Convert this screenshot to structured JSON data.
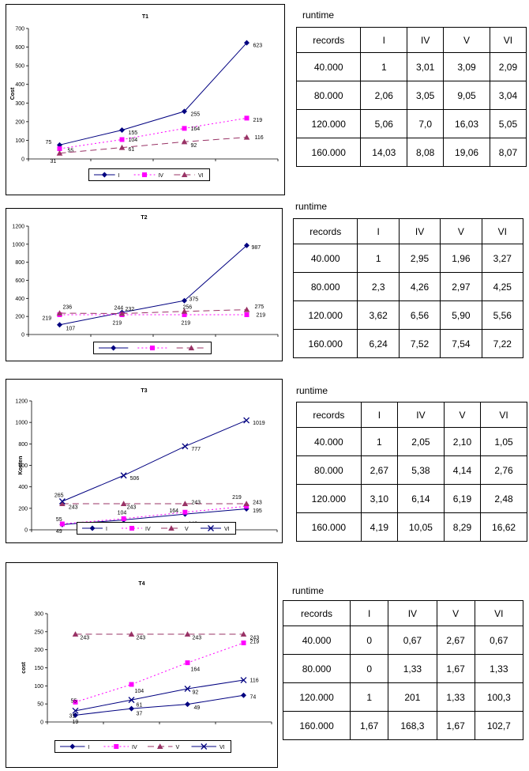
{
  "chart_data": [
    {
      "type": "line",
      "title": "T1",
      "ylabel": "Cost",
      "xlabel": "",
      "ylim": [
        0,
        700
      ],
      "yticks": [
        0,
        100,
        200,
        300,
        400,
        500,
        600,
        700
      ],
      "points": 4,
      "series": [
        {
          "name": "I",
          "values": [
            75,
            155,
            255,
            623
          ],
          "labels": [
            "75",
            "155",
            "255",
            "623"
          ],
          "color": "#000080",
          "dash": "none",
          "marker": "diamond"
        },
        {
          "name": "IV",
          "values": [
            55,
            104,
            164,
            219
          ],
          "labels": [
            "55",
            "104",
            "164",
            "219"
          ],
          "color": "#ff00ff",
          "dash": "2,3",
          "marker": "square"
        },
        {
          "name": "VI",
          "values": [
            31,
            61,
            92,
            116
          ],
          "labels": [
            "31",
            "61",
            "92",
            "116"
          ],
          "color": "#993366",
          "dash": "8,5",
          "marker": "triangle"
        }
      ]
    },
    {
      "type": "line",
      "title": "T2",
      "ylabel": "",
      "xlabel": "",
      "ylim": [
        0,
        1200
      ],
      "yticks": [
        0,
        200,
        400,
        600,
        800,
        1000,
        1200
      ],
      "points": 4,
      "series": [
        {
          "name": "",
          "values": [
            107,
            244,
            375,
            987
          ],
          "labels": [
            "107",
            "244",
            "375",
            "987"
          ],
          "color": "#000080",
          "dash": "none",
          "marker": "diamond"
        },
        {
          "name": "",
          "values": [
            219,
            219,
            219,
            219
          ],
          "labels": [
            "219",
            "219",
            "219",
            "219"
          ],
          "color": "#ff00ff",
          "dash": "2,3",
          "marker": "square"
        },
        {
          "name": "",
          "values": [
            236,
            232,
            256,
            275
          ],
          "labels": [
            "236",
            "232",
            "256",
            "275"
          ],
          "color": "#993366",
          "dash": "8,5",
          "marker": "triangle"
        }
      ]
    },
    {
      "type": "line",
      "title": "T3",
      "ylabel": "Kosten",
      "xlabel": "",
      "ylim": [
        0,
        1200
      ],
      "yticks": [
        0,
        200,
        400,
        600,
        800,
        1000,
        1200
      ],
      "points": 4,
      "series": [
        {
          "name": "I",
          "values": [
            49,
            92,
            146,
            195
          ],
          "labels": [
            "49",
            "92",
            "146",
            "195"
          ],
          "color": "#000080",
          "dash": "none",
          "marker": "diamond"
        },
        {
          "name": "IV",
          "values": [
            55,
            104,
            164,
            219
          ],
          "labels": [
            "55",
            "104",
            "164",
            "219"
          ],
          "color": "#ff00ff",
          "dash": "2,3",
          "marker": "square"
        },
        {
          "name": "V",
          "values": [
            243,
            243,
            243,
            243
          ],
          "labels": [
            "243",
            "243",
            "243",
            "243"
          ],
          "color": "#993366",
          "dash": "8,5",
          "marker": "triangle"
        },
        {
          "name": "VI",
          "values": [
            265,
            506,
            777,
            1019
          ],
          "labels": [
            "265",
            "506",
            "777",
            "1019"
          ],
          "color": "#000080",
          "dash": "none",
          "marker": "x"
        }
      ]
    },
    {
      "type": "line",
      "title": "T4",
      "ylabel": "cost",
      "xlabel": "",
      "ylim": [
        0,
        300
      ],
      "yticks": [
        0,
        50,
        100,
        150,
        200,
        250,
        300
      ],
      "points": 4,
      "series": [
        {
          "name": "I",
          "values": [
            19,
            37,
            49,
            74
          ],
          "labels": [
            "19",
            "37",
            "49",
            "74"
          ],
          "color": "#000080",
          "dash": "none",
          "marker": "diamond"
        },
        {
          "name": "IV",
          "values": [
            55,
            104,
            164,
            219
          ],
          "labels": [
            "55",
            "104",
            "164",
            "219"
          ],
          "color": "#ff00ff",
          "dash": "2,3",
          "marker": "square"
        },
        {
          "name": "V",
          "values": [
            243,
            243,
            243,
            243
          ],
          "labels": [
            "243",
            "243",
            "243",
            "243"
          ],
          "color": "#993366",
          "dash": "8,5",
          "marker": "triangle"
        },
        {
          "name": "VI",
          "values": [
            31,
            61,
            92,
            116
          ],
          "labels": [
            "31",
            "61",
            "92",
            "116"
          ],
          "color": "#000080",
          "dash": "none",
          "marker": "x"
        }
      ]
    }
  ],
  "tables": [
    {
      "label": "runtime",
      "header": [
        "records",
        "I",
        "IV",
        "V",
        "VI"
      ],
      "rows": [
        [
          "40.000",
          "1",
          "3,01",
          "3,09",
          "2,09"
        ],
        [
          "80.000",
          "2,06",
          "3,05",
          "9,05",
          "3,04"
        ],
        [
          "120.000",
          "5,06",
          "7,0",
          "16,03",
          "5,05"
        ],
        [
          "160.000",
          "14,03",
          "8,08",
          "19,06",
          "8,07"
        ]
      ]
    },
    {
      "label": "runtime",
      "header": [
        "records",
        "I",
        "IV",
        "V",
        "VI"
      ],
      "rows": [
        [
          "40.000",
          "1",
          "2,95",
          "1,96",
          "3,27"
        ],
        [
          "80.000",
          "2,3",
          "4,26",
          "2,97",
          "4,25"
        ],
        [
          "120.000",
          "3,62",
          "6,56",
          "5,90",
          "5,56"
        ],
        [
          "160.000",
          "6,24",
          "7,52",
          "7,54",
          "7,22"
        ]
      ]
    },
    {
      "label": "runtime",
      "header": [
        "records",
        "I",
        "IV",
        "V",
        "VI"
      ],
      "rows": [
        [
          "40.000",
          "1",
          "2,05",
          "2,10",
          "1,05"
        ],
        [
          "80.000",
          "2,67",
          "5,38",
          "4,14",
          "2,76"
        ],
        [
          "120.000",
          "3,10",
          "6,14",
          "6,19",
          "2,48"
        ],
        [
          "160.000",
          "4,19",
          "10,05",
          "8,29",
          "16,62"
        ]
      ]
    },
    {
      "label": "runtime",
      "header": [
        "records",
        "I",
        "IV",
        "V",
        "VI"
      ],
      "rows": [
        [
          "40.000",
          "0",
          "0,67",
          "2,67",
          "0,67"
        ],
        [
          "80.000",
          "0",
          "1,33",
          "1,67",
          "1,33"
        ],
        [
          "120.000",
          "1",
          "201",
          "1,33",
          "100,3"
        ],
        [
          "160.000",
          "1,67",
          "168,3",
          "1,67",
          "102,7"
        ]
      ]
    }
  ]
}
